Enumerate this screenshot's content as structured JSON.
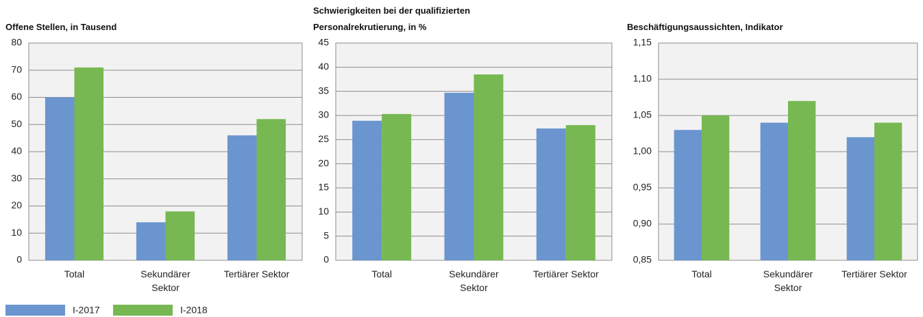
{
  "chart_data": [
    {
      "type": "bar",
      "title": "Offene Stellen, in Tausend",
      "categories": [
        "Total",
        "Sekundärer Sektor",
        "Tertiärer Sektor"
      ],
      "series": [
        {
          "name": "I-2017",
          "color": "#6a95cf",
          "values": [
            60,
            14,
            46
          ]
        },
        {
          "name": "I-2018",
          "color": "#77b852",
          "values": [
            71,
            18,
            52
          ]
        }
      ],
      "ylim": [
        0,
        80
      ],
      "yticks": [
        0,
        10,
        20,
        30,
        40,
        50,
        60,
        70,
        80
      ],
      "grid": true
    },
    {
      "type": "bar",
      "title": "Schwierigkeiten bei der qualifizierten Personalrekrutierung, in %",
      "categories": [
        "Total",
        "Sekundärer Sektor",
        "Tertiärer Sektor"
      ],
      "series": [
        {
          "color": "#6a95cf",
          "values": [
            28.9,
            34.7,
            27.3
          ]
        },
        {
          "color": "#77b852",
          "values": [
            30.3,
            38.5,
            28.0
          ]
        }
      ],
      "ylim": [
        0,
        45
      ],
      "yticks": [
        0,
        5,
        10,
        15,
        20,
        25,
        30,
        35,
        40,
        45
      ],
      "grid": true
    },
    {
      "type": "bar",
      "title": "Beschäftigungsaussichten, Indikator",
      "categories": [
        "Total",
        "Sekundärer Sektor",
        "Tertiärer Sektor"
      ],
      "series": [
        {
          "color": "#6a95cf",
          "values": [
            1.03,
            1.04,
            1.02
          ]
        },
        {
          "color": "#77b852",
          "values": [
            1.05,
            1.07,
            1.04
          ]
        }
      ],
      "ylim": [
        0.85,
        1.15
      ],
      "yticks": [
        {
          "value": 0.85,
          "label": "0,85"
        },
        {
          "value": 0.9,
          "label": "0,90"
        },
        {
          "value": 0.95,
          "label": "0,95"
        },
        {
          "value": 1.0,
          "label": "1,00"
        },
        {
          "value": 1.05,
          "label": "1,05"
        },
        {
          "value": 1.1,
          "label": "1,10"
        },
        {
          "value": 1.15,
          "label": "1,15"
        }
      ],
      "grid": true
    }
  ]
}
